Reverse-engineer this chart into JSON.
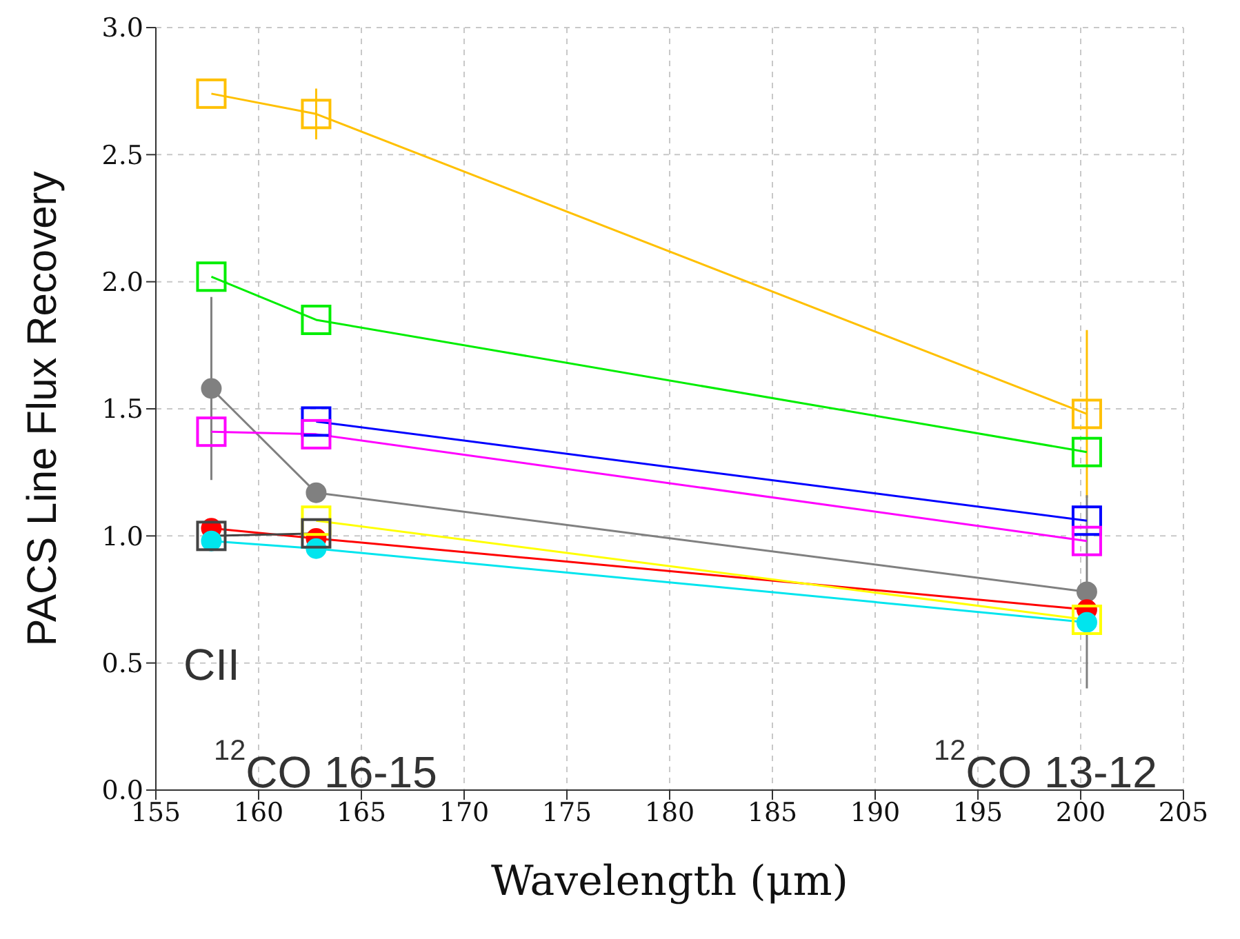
{
  "chart_data": {
    "type": "line",
    "xlabel": "Wavelength (μm)",
    "ylabel": "PACS Line Flux Recovery",
    "xlim": [
      155,
      205
    ],
    "xticks": [
      155,
      160,
      165,
      170,
      175,
      180,
      185,
      190,
      195,
      200,
      205
    ],
    "ylim": [
      0,
      3
    ],
    "yticks": [
      {
        "value": 0,
        "label": "0.0"
      },
      {
        "value": 0.5,
        "label": "0.5"
      },
      {
        "value": 1,
        "label": "1.0"
      },
      {
        "value": 1.5,
        "label": "1.5"
      },
      {
        "value": 2,
        "label": "2.0"
      },
      {
        "value": 2.5,
        "label": "2.5"
      },
      {
        "value": 3,
        "label": "3.0"
      }
    ],
    "grid": true,
    "x": [
      157.7,
      162.8,
      200.3
    ],
    "series": [
      {
        "color": "#ffc000",
        "marker": "square",
        "values": [
          2.74,
          2.66,
          1.48
        ],
        "errors": [
          null,
          0.1,
          0.33
        ]
      },
      {
        "color": "#00ee00",
        "marker": "square",
        "values": [
          2.02,
          1.85,
          1.33
        ]
      },
      {
        "color": "#808080",
        "marker": "circle",
        "values": [
          1.58,
          1.17,
          0.78
        ],
        "errors": [
          0.36,
          null,
          0.38
        ]
      },
      {
        "color": "#ff0000",
        "marker": "circle",
        "values": [
          1.03,
          0.99,
          0.71
        ]
      },
      {
        "color": "#00e5ee",
        "marker": "circle",
        "values": [
          0.98,
          0.95,
          0.66
        ]
      },
      {
        "color": "#0000ff",
        "marker": "square",
        "values": [
          null,
          1.45,
          1.06
        ]
      },
      {
        "color": "#ff00ff",
        "marker": "square",
        "values": [
          1.41,
          1.4,
          0.98
        ]
      },
      {
        "color": "#ffff00",
        "marker": "square",
        "values": [
          null,
          1.06,
          0.67
        ]
      },
      {
        "color": "#444444",
        "marker": "square",
        "values": [
          1.0,
          1.01,
          null
        ]
      }
    ],
    "annotations": [
      "CII",
      "$^{12}$CO 16-15",
      "$^{12}$CO 13-12"
    ]
  }
}
